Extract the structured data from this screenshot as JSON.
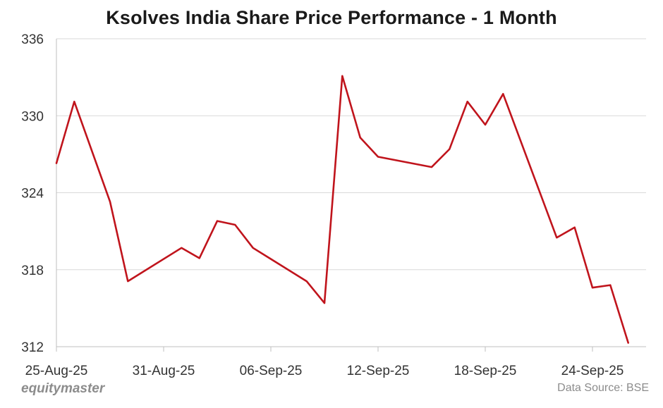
{
  "header": {
    "title": "Ksolves India Share Price Performance - 1 Month"
  },
  "footer": {
    "brand": "equitymaster",
    "source": "Data Source: BSE"
  },
  "chart_data": {
    "type": "line",
    "title": "Ksolves India Share Price Performance - 1 Month",
    "xlabel": "",
    "ylabel": "",
    "ylim": [
      312,
      336
    ],
    "y_ticks": [
      312,
      318,
      324,
      330,
      336
    ],
    "x_ticks": [
      "25-Aug-25",
      "31-Aug-25",
      "06-Sep-25",
      "12-Sep-25",
      "18-Sep-25",
      "24-Sep-25"
    ],
    "xlim": [
      "2025-08-25",
      "2025-09-27"
    ],
    "grid": true,
    "line_color": "#c0141c",
    "series": [
      {
        "x": [
          "2025-08-25",
          "2025-08-26",
          "2025-08-28",
          "2025-08-29",
          "2025-09-01",
          "2025-09-02",
          "2025-09-03",
          "2025-09-04",
          "2025-09-05",
          "2025-09-08",
          "2025-09-09",
          "2025-09-10",
          "2025-09-11",
          "2025-09-12",
          "2025-09-15",
          "2025-09-16",
          "2025-09-17",
          "2025-09-18",
          "2025-09-19",
          "2025-09-22",
          "2025-09-23",
          "2025-09-24",
          "2025-09-25",
          "2025-09-26"
        ],
        "values": [
          326.3,
          331.1,
          323.3,
          317.1,
          319.7,
          318.9,
          321.8,
          321.5,
          319.7,
          317.1,
          315.4,
          333.1,
          328.3,
          326.8,
          326.0,
          327.4,
          331.1,
          329.3,
          331.7,
          320.5,
          321.3,
          316.6,
          316.8,
          312.3
        ]
      }
    ]
  }
}
